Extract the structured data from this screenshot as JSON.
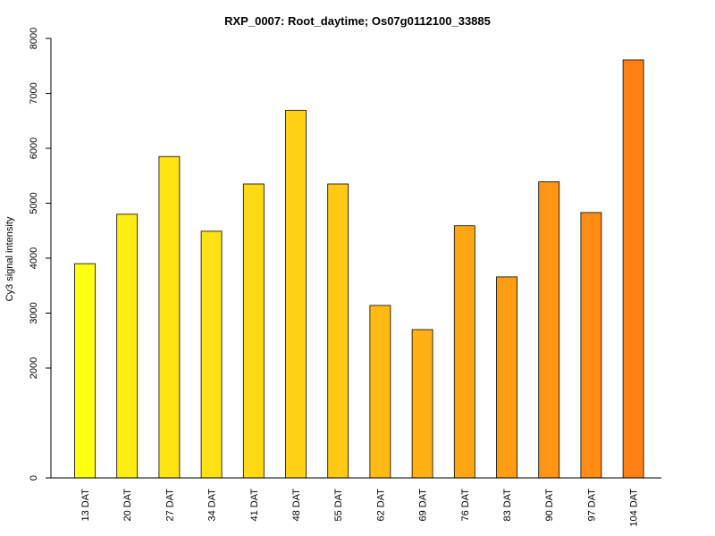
{
  "chart_data": {
    "type": "bar",
    "title": "RXP_0007: Root_daytime; Os07g0112100_33885",
    "xlabel": "",
    "ylabel": "Cy3 signal intensity",
    "ylim": [
      0,
      8000
    ],
    "yticks": [
      0,
      2000,
      3000,
      4000,
      5000,
      6000,
      7000,
      8000
    ],
    "grid": false,
    "categories": [
      "13 DAT",
      "20 DAT",
      "27 DAT",
      "34 DAT",
      "41 DAT",
      "48 DAT",
      "55 DAT",
      "62 DAT",
      "69 DAT",
      "76 DAT",
      "83 DAT",
      "90 DAT",
      "97 DAT",
      "104 DAT"
    ],
    "values": [
      3900,
      4800,
      5850,
      4490,
      5350,
      6690,
      5350,
      3140,
      2700,
      4590,
      3660,
      5390,
      4830,
      7610
    ],
    "colors": [
      "#ffff14",
      "#ffed14",
      "#ffe414",
      "#ffe114",
      "#ffd914",
      "#ffd014",
      "#ffc914",
      "#ffb914",
      "#ffb114",
      "#ffa614",
      "#ff9d14",
      "#ff9514",
      "#ff8c14",
      "#ff8014"
    ]
  }
}
